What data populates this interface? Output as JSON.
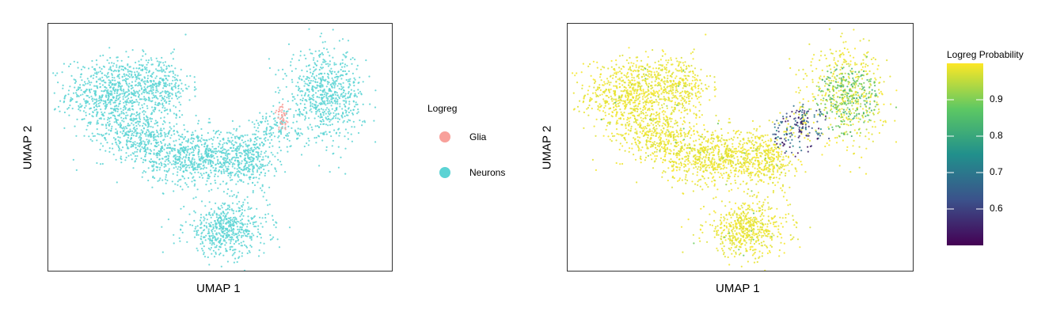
{
  "chart_data": [
    {
      "type": "scatter",
      "xlabel": "UMAP 1",
      "ylabel": "UMAP 2",
      "legend": {
        "title": "Logreg",
        "position": "right",
        "entries": [
          {
            "label": "Glia",
            "color": "#F8A09A"
          },
          {
            "label": "Neurons",
            "color": "#5BD3D4"
          }
        ]
      },
      "grid": false,
      "clusters": [
        {
          "category": "Neurons",
          "cx": -6.0,
          "cy": 4.2,
          "rx": 2.3,
          "ry": 1.8,
          "n": 700
        },
        {
          "category": "Neurons",
          "cx": -3.4,
          "cy": 4.6,
          "rx": 1.6,
          "ry": 1.5,
          "n": 300
        },
        {
          "category": "Neurons",
          "cx": -4.6,
          "cy": 2.0,
          "rx": 2.0,
          "ry": 1.2,
          "n": 350
        },
        {
          "category": "Neurons",
          "cx": -1.5,
          "cy": 0.8,
          "rx": 2.6,
          "ry": 1.4,
          "n": 700
        },
        {
          "category": "Neurons",
          "cx": 1.4,
          "cy": 0.6,
          "rx": 1.5,
          "ry": 1.4,
          "n": 320
        },
        {
          "category": "Neurons",
          "cx": 0.3,
          "cy": -3.2,
          "rx": 2.1,
          "ry": 1.3,
          "n": 550
        },
        {
          "category": "Neurons",
          "cx": 5.8,
          "cy": 4.1,
          "rx": 1.9,
          "ry": 2.2,
          "n": 700
        },
        {
          "category": "Neurons",
          "cx": 3.0,
          "cy": 2.2,
          "rx": 1.2,
          "ry": 0.9,
          "n": 120
        },
        {
          "category": "Glia",
          "cx": 3.4,
          "cy": 2.9,
          "rx": 0.35,
          "ry": 0.6,
          "n": 45
        }
      ],
      "xlim": [
        -9,
        9
      ],
      "ylim": [
        -5,
        7.5
      ]
    },
    {
      "type": "scatter",
      "xlabel": "UMAP 1",
      "ylabel": "UMAP 2",
      "colorbar": {
        "title": "Logreg Probability",
        "range": [
          0.5,
          1.0
        ],
        "ticks": [
          0.6,
          0.7,
          0.8,
          0.9
        ],
        "tick_labels": [
          "0.6",
          "0.7",
          "0.8",
          "0.9"
        ],
        "colormap": [
          "#440154",
          "#3B528B",
          "#21908C",
          "#5DC863",
          "#FDE725"
        ]
      },
      "grid": false,
      "low_probability_region": {
        "cx": 3.3,
        "cy": 2.2,
        "rx": 1.6,
        "ry": 1.5,
        "n": 160,
        "probability_range": [
          0.5,
          0.75
        ]
      },
      "mid_probability_region": {
        "cx": 5.8,
        "cy": 3.8,
        "rx": 1.8,
        "ry": 2.0,
        "n": 220,
        "probability_range": [
          0.8,
          0.95
        ]
      },
      "xlim": [
        -9,
        9
      ],
      "ylim": [
        -5,
        7.5
      ]
    }
  ]
}
